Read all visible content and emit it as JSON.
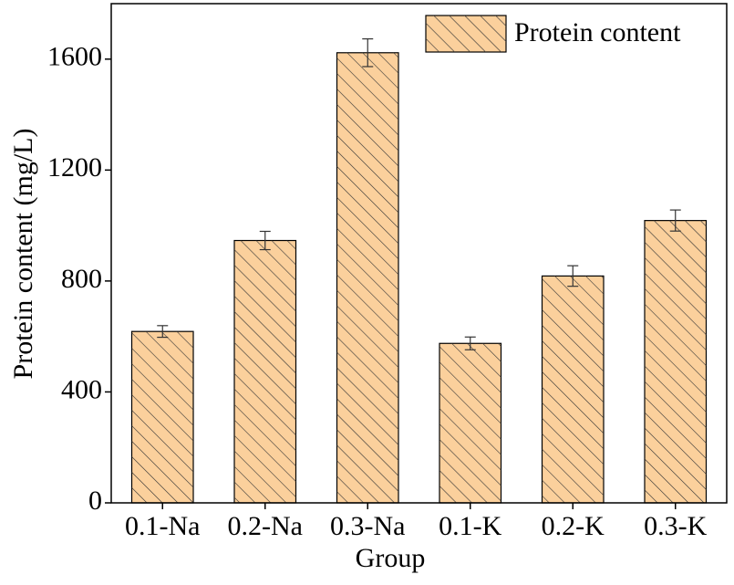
{
  "chart_data": {
    "type": "bar",
    "x_label": "Group",
    "y_label": "Protein content (mg/L)",
    "categories": [
      "0.1-Na",
      "0.2-Na",
      "0.3-Na",
      "0.1-K",
      "0.2-K",
      "0.3-K"
    ],
    "series": [
      {
        "name": "Protein content",
        "color": "#fbd09c",
        "values": [
          618,
          946,
          1623,
          575,
          818,
          1018
        ],
        "errors": [
          21,
          33,
          50,
          23,
          37,
          38
        ]
      }
    ],
    "ylim": [
      0,
      1800
    ],
    "yticks": [
      0,
      400,
      800,
      1200,
      1600
    ],
    "legend": "upper right",
    "hatch": true
  }
}
